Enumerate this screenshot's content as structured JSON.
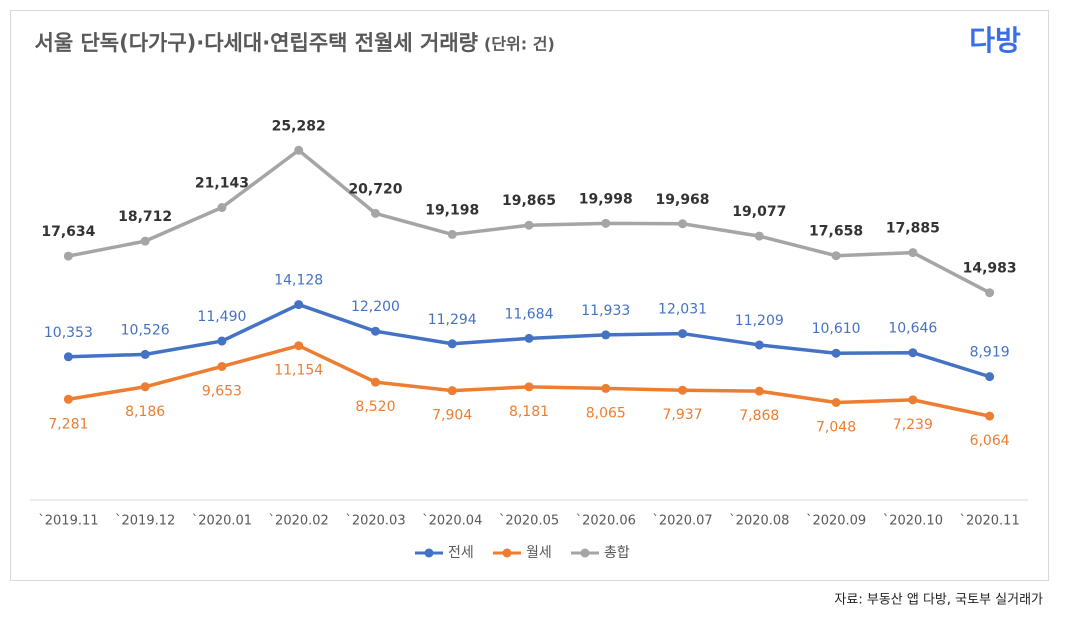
{
  "chart_data": {
    "type": "line",
    "title": "서울 단독(다가구)·다세대·연립주택 전월세 거래량",
    "subtitle": "(단위: 건)",
    "logo": "다방",
    "source": "자료: 부동산 앱 다방, 국토부 실거래가",
    "categories": [
      "`2019.11",
      "`2019.12",
      "`2020.01",
      "`2020.02",
      "`2020.03",
      "`2020.04",
      "`2020.05",
      "`2020.06",
      "`2020.07",
      "`2020.08",
      "`2020.09",
      "`2020.10",
      "`2020.11"
    ],
    "ylim": [
      0,
      30000
    ],
    "legend": "bottom",
    "series": [
      {
        "name": "전세",
        "color": "#4472c4",
        "label_color": "#4472c4",
        "label_side": "above",
        "values": [
          10353,
          10526,
          11490,
          14128,
          12200,
          11294,
          11684,
          11933,
          12031,
          11209,
          10610,
          10646,
          8919
        ],
        "value_labels": [
          "10,353",
          "10,526",
          "11,490",
          "14,128",
          "12,200",
          "11,294",
          "11,684",
          "11,933",
          "12,031",
          "11,209",
          "10,610",
          "10,646",
          "8,919"
        ]
      },
      {
        "name": "월세",
        "color": "#ed7d31",
        "label_color": "#ed7d31",
        "label_side": "below",
        "values": [
          7281,
          8186,
          9653,
          11154,
          8520,
          7904,
          8181,
          8065,
          7937,
          7868,
          7048,
          7239,
          6064
        ],
        "value_labels": [
          "7,281",
          "8,186",
          "9,653",
          "11,154",
          "8,520",
          "7,904",
          "8,181",
          "8,065",
          "7,937",
          "7,868",
          "7,048",
          "7,239",
          "6,064"
        ]
      },
      {
        "name": "총합",
        "color": "#a5a5a5",
        "label_color": "#333333",
        "label_side": "above",
        "values": [
          17634,
          18712,
          21143,
          25282,
          20720,
          19198,
          19865,
          19998,
          19968,
          19077,
          17658,
          17885,
          14983
        ],
        "value_labels": [
          "17,634",
          "18,712",
          "21,143",
          "25,282",
          "20,720",
          "19,198",
          "19,865",
          "19,998",
          "19,968",
          "19,077",
          "17,658",
          "17,885",
          "14,983"
        ]
      }
    ]
  }
}
